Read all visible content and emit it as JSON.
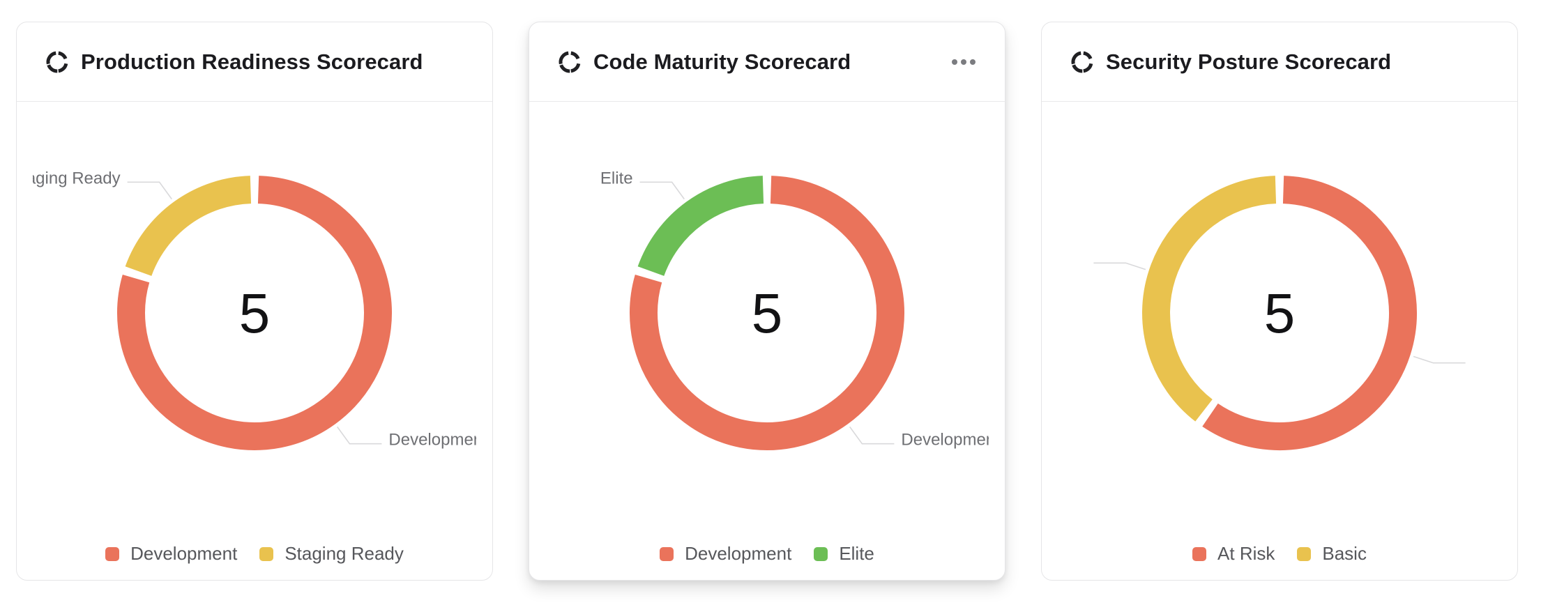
{
  "page": {
    "background": "#ffffff"
  },
  "colors": {
    "development": "#EA735B",
    "staging_ready": "#E9C24E",
    "elite": "#6CBE55",
    "at_risk": "#EA735B",
    "basic": "#E9C24E",
    "title_text": "#1B1B1F",
    "legend_text": "#56575B",
    "callout_text": "#6E6F73",
    "leader_line": "#D9D9DB",
    "card_border": "#E5E5E7"
  },
  "cards": [
    {
      "title": "Production Readiness Scorecard",
      "header_icon": "scorecard-ring-icon",
      "menu_visible": false
    },
    {
      "title": "Code Maturity Scorecard",
      "header_icon": "scorecard-ring-icon",
      "menu_visible": true,
      "menu_icon": "ellipsis-icon"
    },
    {
      "title": "Security Posture Scorecard",
      "header_icon": "scorecard-ring-icon",
      "menu_visible": false
    }
  ],
  "chart_data": [
    {
      "type": "pie",
      "subtype": "donut",
      "title": "Production Readiness Scorecard",
      "center_label": "5",
      "slices": [
        {
          "name": "Development",
          "value": 4,
          "color": "#EA735B"
        },
        {
          "name": "Staging Ready",
          "value": 1,
          "color": "#E9C24E"
        }
      ],
      "legend": [
        "Development",
        "Staging Ready"
      ],
      "legend_position": "bottom",
      "callouts": [
        {
          "label": "Development",
          "visible_text": "Developr",
          "angle_deg": 144
        },
        {
          "label": "Staging Ready",
          "visible_text": "ng Ready",
          "angle_deg": 324
        }
      ]
    },
    {
      "type": "pie",
      "subtype": "donut",
      "title": "Code Maturity Scorecard",
      "center_label": "5",
      "slices": [
        {
          "name": "Development",
          "value": 4,
          "color": "#EA735B"
        },
        {
          "name": "Elite",
          "value": 1,
          "color": "#6CBE55"
        }
      ],
      "legend": [
        "Development",
        "Elite"
      ],
      "legend_position": "bottom",
      "callouts": [
        {
          "label": "Development",
          "visible_text": "Developr",
          "angle_deg": 144
        },
        {
          "label": "Elite",
          "visible_text": "Elite",
          "angle_deg": 324
        }
      ]
    },
    {
      "type": "pie",
      "subtype": "donut",
      "title": "Security Posture Scorecard",
      "center_label": "5",
      "slices": [
        {
          "name": "At Risk",
          "value": 3,
          "color": "#EA735B"
        },
        {
          "name": "Basic",
          "value": 2,
          "color": "#E9C24E"
        }
      ],
      "legend": [
        "At Risk",
        "Basic"
      ],
      "legend_position": "bottom",
      "callouts": [
        {
          "label": "",
          "visible_text": "",
          "angle_deg": 108
        },
        {
          "label": "",
          "visible_text": "",
          "angle_deg": 288
        }
      ]
    }
  ]
}
